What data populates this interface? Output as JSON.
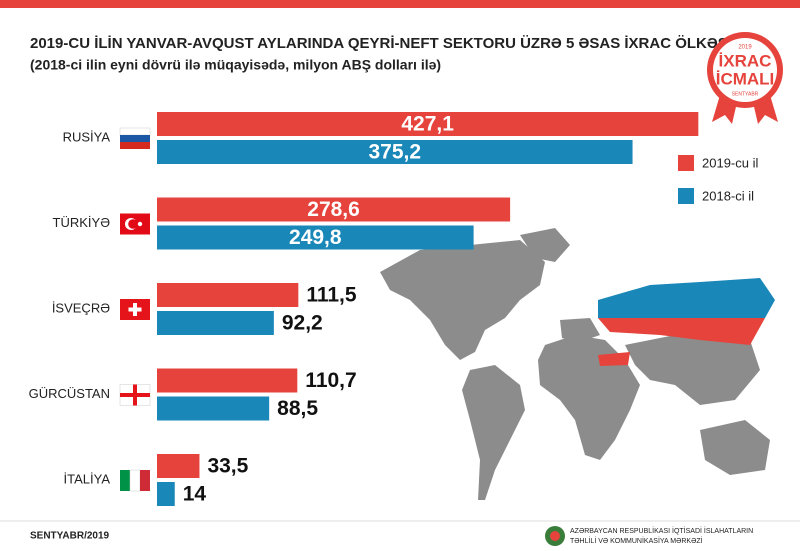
{
  "chart_data": {
    "type": "bar",
    "orientation": "horizontal",
    "title": "2019-CU İLİN YANVAR-AVQUST AYLARINDA QEYRİ-NEFT SEKTORU ÜZRƏ 5 ƏSAS İXRAC ÖLKƏSİ",
    "subtitle": "(2018-ci ilin eyni dövrü ilə müqayisədə, milyon ABŞ dolları ilə)",
    "categories": [
      "RUSİYA",
      "TÜRKİYƏ",
      "İSVEÇRƏ",
      "GÜRCÜSTAN",
      "İTALİYA"
    ],
    "series": [
      {
        "name": "2019-cu il",
        "color": "#e5433c",
        "values": [
          427.1,
          278.6,
          111.5,
          110.7,
          33.5
        ],
        "value_labels": [
          "427,1",
          "278,6",
          "111,5",
          "110,7",
          "33,5"
        ]
      },
      {
        "name": "2018-ci il",
        "color": "#1a87b9",
        "values": [
          375.2,
          249.8,
          92.2,
          88.5,
          14
        ],
        "value_labels": [
          "375,2",
          "249,8",
          "92,2",
          "88,5",
          "14"
        ]
      }
    ],
    "xlim": [
      0,
      430
    ],
    "legend": "right",
    "badge": {
      "year": "2019",
      "line1": "İXRAC",
      "line2": "İCMALI",
      "month": "SENTYABR"
    },
    "footer": {
      "date": "SENTYABR/2019",
      "org_line1": "AZƏRBAYCAN RESPUBLİKASI İQTİSADİ İSLAHATLARIN",
      "org_line2": "TƏHLİLİ VƏ KOMMUNİKASİYA MƏRKƏZİ"
    }
  }
}
